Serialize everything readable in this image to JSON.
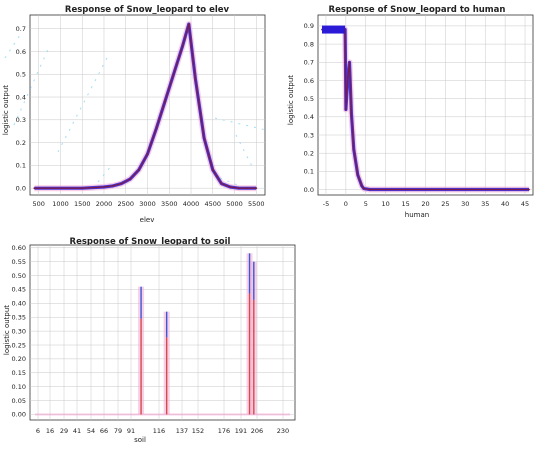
{
  "chart_data": [
    {
      "type": "line",
      "title": "Response of Snow_leopard to elev",
      "xlabel": "elev",
      "ylabel": "logistic output",
      "xlim": [
        300,
        5700
      ],
      "ylim": [
        -0.03,
        0.76
      ],
      "xticks": [
        500,
        1000,
        1500,
        2000,
        2500,
        3000,
        3500,
        4000,
        4500,
        5000,
        5500
      ],
      "yticks": [
        0.0,
        0.1,
        0.2,
        0.3,
        0.4,
        0.5,
        0.6,
        0.7
      ],
      "ytick_labels": [
        "0.0",
        "0.1",
        "0.2",
        "0.3",
        "0.4",
        "0.5",
        "0.6",
        "0.7"
      ],
      "grid": true,
      "series": [
        {
          "x": [
            400,
            1500,
            2000,
            2200,
            2400,
            2600,
            2800,
            3000,
            3200,
            3400,
            3600,
            3800,
            3950,
            4100,
            4300,
            4500,
            4700,
            4900,
            5100,
            5300,
            5500
          ],
          "values": [
            0.0,
            0.0,
            0.005,
            0.01,
            0.02,
            0.04,
            0.08,
            0.15,
            0.26,
            0.38,
            0.5,
            0.62,
            0.72,
            0.48,
            0.22,
            0.08,
            0.02,
            0.005,
            0.0,
            0.0,
            0.0
          ]
        }
      ]
    },
    {
      "type": "line",
      "title": "Response of Snow_leopard to human",
      "xlabel": "human",
      "ylabel": "logistic output",
      "xlim": [
        -7,
        47
      ],
      "ylim": [
        -0.03,
        0.96
      ],
      "xticks": [
        -5,
        0,
        5,
        10,
        15,
        20,
        25,
        30,
        35,
        40,
        45
      ],
      "yticks": [
        0.0,
        0.1,
        0.2,
        0.3,
        0.4,
        0.5,
        0.6,
        0.7,
        0.8,
        0.9
      ],
      "ytick_labels": [
        "0.0",
        "0.1",
        "0.2",
        "0.3",
        "0.4",
        "0.5",
        "0.6",
        "0.7",
        "0.8",
        "0.9"
      ],
      "grid": true,
      "series": [
        {
          "x": [
            -6,
            -0.2,
            -0.1,
            0,
            0.5,
            0.9,
            1.4,
            2,
            3,
            4,
            4.5,
            6,
            46
          ],
          "values": [
            0.88,
            0.88,
            0.7,
            0.44,
            0.62,
            0.7,
            0.42,
            0.22,
            0.08,
            0.02,
            0.005,
            0.0,
            0.0
          ]
        }
      ]
    },
    {
      "type": "bar",
      "title": "Response of Snow_leopard to soil",
      "xlabel": "soil",
      "ylabel": "logistic output",
      "ylim": [
        -0.02,
        0.61
      ],
      "categories": [
        "6",
        "16",
        "29",
        "41",
        "54",
        "66",
        "79",
        "91",
        "116",
        "137",
        "152",
        "176",
        "191",
        "206",
        "230"
      ],
      "yticks": [
        0.0,
        0.05,
        0.1,
        0.15,
        0.2,
        0.25,
        0.3,
        0.35,
        0.4,
        0.45,
        0.5,
        0.55,
        0.6
      ],
      "ytick_labels": [
        "0.00",
        "0.05",
        "0.10",
        "0.15",
        "0.20",
        "0.25",
        "0.30",
        "0.35",
        "0.40",
        "0.45",
        "0.50",
        "0.55",
        "0.60"
      ],
      "grid": true,
      "bars": [
        {
          "x": 100,
          "values": [
            0.46,
            0.0
          ]
        },
        {
          "x": 123,
          "values": [
            0.37,
            0.0
          ]
        },
        {
          "x": 199,
          "values": [
            0.58,
            0.0
          ]
        },
        {
          "x": 203,
          "values": [
            0.55,
            0.0
          ]
        }
      ]
    }
  ],
  "colors": {
    "mean_line": "#7a1a4a",
    "band_blue": "#2b1bd6",
    "band_pink": "#f3a9d4",
    "bar_red": "#d64a4a",
    "bar_blue": "#3a57d6",
    "grid": "#c8c8c8",
    "frame": "#333333",
    "dash_cyan": "#8fd4f0"
  }
}
